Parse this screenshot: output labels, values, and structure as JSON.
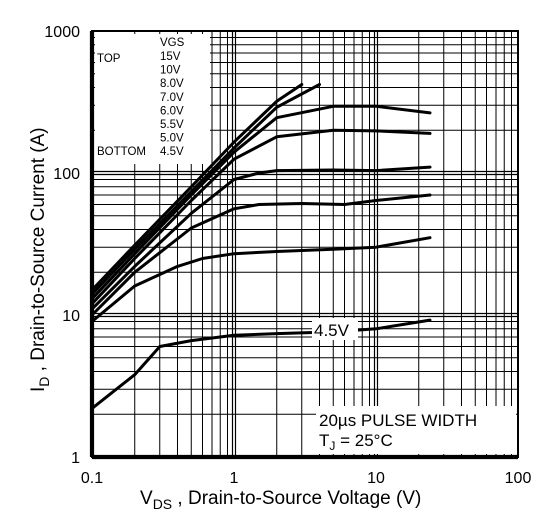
{
  "chart_data": {
    "type": "line",
    "title": "",
    "xlabel": {
      "main": "V",
      "sub": "DS",
      "rest": " , Drain-to-Source Voltage (V)"
    },
    "ylabel": {
      "main": "I",
      "sub": "D",
      "rest": " ,  Drain-to-Source Current (A)"
    },
    "x_scale": "log",
    "y_scale": "log",
    "xlim": [
      0.1,
      100
    ],
    "ylim": [
      1,
      1000
    ],
    "x_ticks": [
      {
        "value": 0.1,
        "label": "0.1"
      },
      {
        "value": 1,
        "label": "1"
      },
      {
        "value": 10,
        "label": "10"
      },
      {
        "value": 100,
        "label": "100"
      }
    ],
    "y_ticks": [
      {
        "value": 1,
        "label": "1"
      },
      {
        "value": 10,
        "label": "10"
      },
      {
        "value": 100,
        "label": "100"
      },
      {
        "value": 1000,
        "label": "1000"
      }
    ],
    "grid": true,
    "legend": {
      "position": "top-left",
      "header_left": "TOP",
      "header_right": "VGS",
      "rows": [
        {
          "left": "",
          "right": "15V"
        },
        {
          "left": "",
          "right": "10V"
        },
        {
          "left": "",
          "right": "8.0V"
        },
        {
          "left": "",
          "right": "7.0V"
        },
        {
          "left": "",
          "right": "6.0V"
        },
        {
          "left": "",
          "right": "5.5V"
        },
        {
          "left": "",
          "right": "5.0V"
        },
        {
          "left": "BOTTOM",
          "right": "4.5V"
        }
      ]
    },
    "annotations": {
      "curve_callout": "4.5V",
      "note_line1": "20µs PULSE WIDTH",
      "note_line2_main": "T",
      "note_line2_sub": "J",
      "note_line2_rest": " = 25°C"
    },
    "series": [
      {
        "x": [
          0.1,
          0.2,
          0.5,
          1,
          2,
          3
        ],
        "y": [
          15,
          31,
          80,
          165,
          320,
          420
        ]
      },
      {
        "x": [
          0.1,
          0.2,
          0.5,
          1,
          2,
          4
        ],
        "y": [
          14,
          29,
          74,
          150,
          290,
          420
        ]
      },
      {
        "x": [
          0.1,
          0.2,
          0.5,
          1,
          2,
          5,
          10,
          24
        ],
        "y": [
          13,
          27,
          70,
          140,
          245,
          295,
          295,
          265
        ]
      },
      {
        "x": [
          0.1,
          0.2,
          0.5,
          1,
          2,
          5,
          10,
          24
        ],
        "y": [
          12,
          25,
          64,
          125,
          180,
          200,
          198,
          190
        ]
      },
      {
        "x": [
          0.1,
          0.2,
          0.5,
          1,
          1.5,
          2,
          5,
          10,
          24
        ],
        "y": [
          11,
          22,
          52,
          90,
          100,
          104,
          105,
          104,
          110
        ]
      },
      {
        "x": [
          0.1,
          0.2,
          0.5,
          1,
          1.5,
          3,
          6,
          10,
          24
        ],
        "y": [
          10,
          20,
          41,
          56,
          60,
          61,
          60,
          64,
          70
        ]
      },
      {
        "x": [
          0.1,
          0.2,
          0.4,
          0.6,
          1,
          2,
          5,
          10,
          24
        ],
        "y": [
          9,
          16,
          22,
          25,
          27,
          28,
          29,
          30,
          35
        ]
      },
      {
        "x": [
          0.1,
          0.2,
          0.3,
          0.5,
          1,
          2,
          5,
          10,
          24
        ],
        "y": [
          2.2,
          3.8,
          6,
          6.6,
          7.2,
          7.4,
          7.6,
          8,
          9.2
        ]
      }
    ]
  }
}
